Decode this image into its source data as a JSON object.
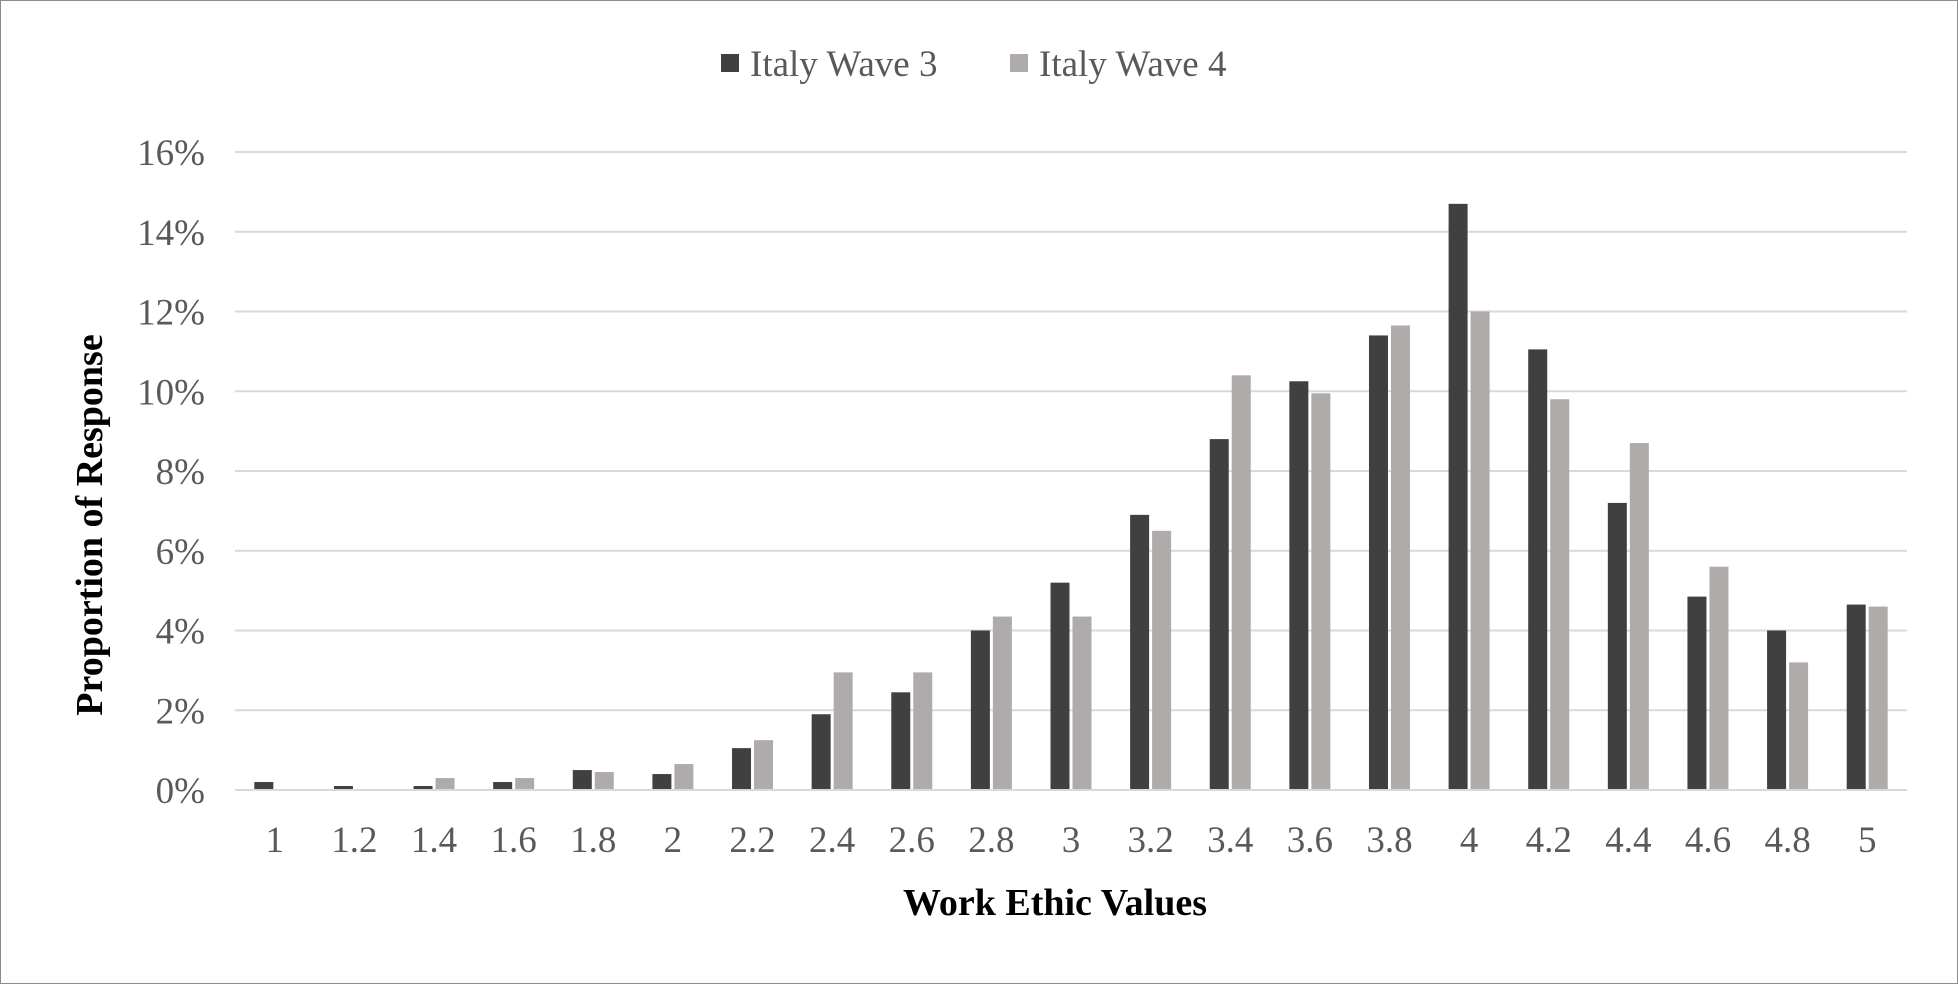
{
  "chart_data": {
    "type": "bar",
    "xlabel": "Work Ethic Values",
    "ylabel": "Proportion of Response",
    "categories": [
      "1",
      "1.2",
      "1.4",
      "1.6",
      "1.8",
      "2",
      "2.2",
      "2.4",
      "2.6",
      "2.8",
      "3",
      "3.2",
      "3.4",
      "3.6",
      "3.8",
      "4",
      "4.2",
      "4.4",
      "4.6",
      "4.8",
      "5"
    ],
    "series": [
      {
        "name": "Italy Wave 3",
        "color": "#404040",
        "values": [
          0.2,
          0.1,
          0.1,
          0.2,
          0.5,
          0.4,
          1.05,
          1.9,
          2.45,
          4.0,
          5.2,
          6.9,
          8.8,
          10.25,
          11.4,
          14.7,
          11.05,
          7.2,
          4.85,
          4.0,
          4.65
        ]
      },
      {
        "name": "Italy Wave 4",
        "color": "#afabab",
        "values": [
          0.0,
          0.0,
          0.3,
          0.3,
          0.45,
          0.65,
          1.25,
          2.95,
          2.95,
          4.35,
          4.35,
          6.5,
          10.4,
          9.95,
          11.65,
          12.0,
          9.8,
          8.7,
          5.6,
          3.2,
          4.6
        ]
      }
    ],
    "y_ticks": [
      "0%",
      "2%",
      "4%",
      "6%",
      "8%",
      "10%",
      "12%",
      "14%",
      "16%"
    ],
    "ylim": [
      0,
      16
    ],
    "y_unit": "%",
    "grid": true,
    "gridline_color": "#d9d9d9",
    "legend_position": "top-center"
  }
}
